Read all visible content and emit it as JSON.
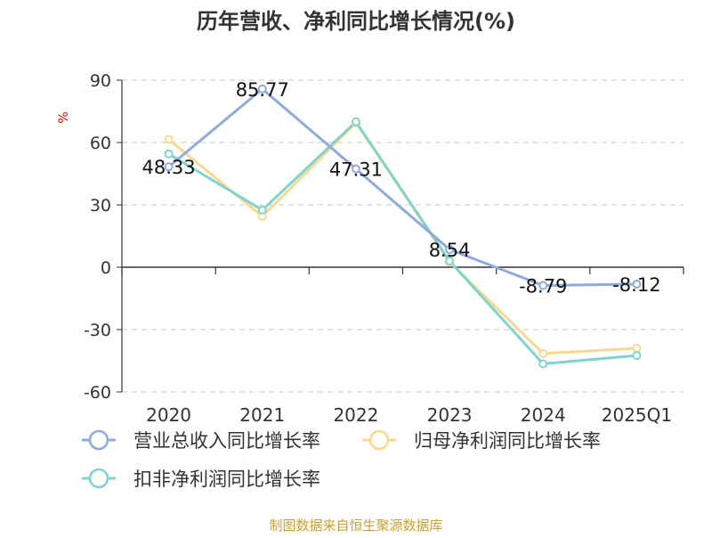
{
  "chart_data": {
    "type": "line",
    "title": "历年营收、净利同比增长情况(%)",
    "ylabel": "%",
    "xlabel": "",
    "categories": [
      "2020",
      "2021",
      "2022",
      "2023",
      "2024",
      "2025Q1"
    ],
    "ylim": [
      -60,
      90
    ],
    "yticks": [
      90,
      60,
      30,
      0,
      -30,
      -60
    ],
    "grid": true,
    "legend_position": "bottom",
    "series": [
      {
        "name": "营业总收入同比增长率",
        "color": "#8faadc",
        "values": [
          48.33,
          85.77,
          47.31,
          8.54,
          -8.79,
          -8.12
        ],
        "labels": [
          "48.33",
          "85.77",
          "47.31",
          "8.54",
          "-8.79",
          "-8.12"
        ]
      },
      {
        "name": "归母净利润同比增长率",
        "color": "#fcd88f",
        "values": [
          61.5,
          24.5,
          69.5,
          2.5,
          -41.5,
          -39.0
        ],
        "labels": []
      },
      {
        "name": "扣非净利润同比增长率",
        "color": "#7fd3d0",
        "values": [
          54.5,
          27.5,
          70.0,
          3.0,
          -46.5,
          -42.5
        ],
        "labels": []
      }
    ]
  },
  "footer": {
    "source": "制图数据来自恒生聚源数据库"
  }
}
